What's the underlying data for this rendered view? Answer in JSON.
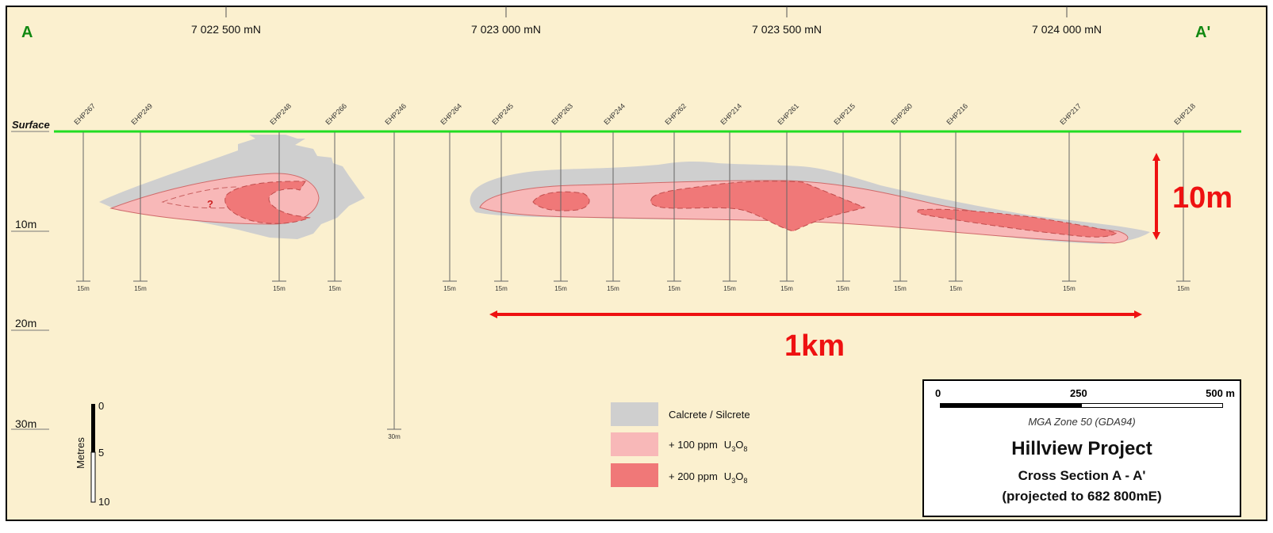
{
  "section_end_labels": {
    "start": "A",
    "end": "A'"
  },
  "northings": [
    "7 022 500 mN",
    "7 023 000 mN",
    "7 023 500 mN",
    "7 024 000 mN"
  ],
  "surface_label": "Surface",
  "depth_labels": [
    "10m",
    "20m",
    "30m"
  ],
  "drillholes": [
    {
      "id": "EHP267",
      "depth_label": "15m"
    },
    {
      "id": "EHP249",
      "depth_label": "15m"
    },
    {
      "id": "EHP248",
      "depth_label": "15m"
    },
    {
      "id": "EHP266",
      "depth_label": "15m"
    },
    {
      "id": "EHP246",
      "depth_label": "30m"
    },
    {
      "id": "EHP264",
      "depth_label": "15m"
    },
    {
      "id": "EHP245",
      "depth_label": "15m"
    },
    {
      "id": "EHP263",
      "depth_label": "15m"
    },
    {
      "id": "EHP244",
      "depth_label": "15m"
    },
    {
      "id": "EHP262",
      "depth_label": "15m"
    },
    {
      "id": "EHP214",
      "depth_label": "15m"
    },
    {
      "id": "EHP261",
      "depth_label": "15m"
    },
    {
      "id": "EHP215",
      "depth_label": "15m"
    },
    {
      "id": "EHP260",
      "depth_label": "15m"
    },
    {
      "id": "EHP216",
      "depth_label": "15m"
    },
    {
      "id": "EHP217",
      "depth_label": "15m"
    },
    {
      "id": "EHP218",
      "depth_label": "15m"
    }
  ],
  "uncertain_marker": "?",
  "annotations": {
    "vertical_scale": "10m",
    "horizontal_scale": "1km"
  },
  "vertical_scale_bar": {
    "title": "Metres",
    "ticks": [
      "0",
      "5",
      "10"
    ]
  },
  "legend": [
    {
      "label": "Calcrete / Silcrete",
      "color": "#cfcfcf"
    },
    {
      "label": "+ 100 ppm",
      "formula": [
        "U",
        "3",
        "O",
        "8"
      ],
      "color": "#f8b8b8"
    },
    {
      "label": "+ 200 ppm",
      "formula": [
        "U",
        "3",
        "O",
        "8"
      ],
      "color": "#f07878"
    }
  ],
  "title_block": {
    "scale_labels": [
      "0",
      "250",
      "500 m"
    ],
    "datum": "MGA Zone 50 (GDA94)",
    "project": "Hillview Project",
    "section": "Cross Section A - A'",
    "projection": "(projected to 682 800mE)"
  },
  "colors": {
    "background": "#fbf0cf",
    "surface_line": "#22dd22",
    "section_label": "#118811",
    "annotation_red": "#ee1111",
    "calcrete": "#cfcfcf",
    "ppm100": "#f8b8b8",
    "ppm200": "#f07878"
  }
}
